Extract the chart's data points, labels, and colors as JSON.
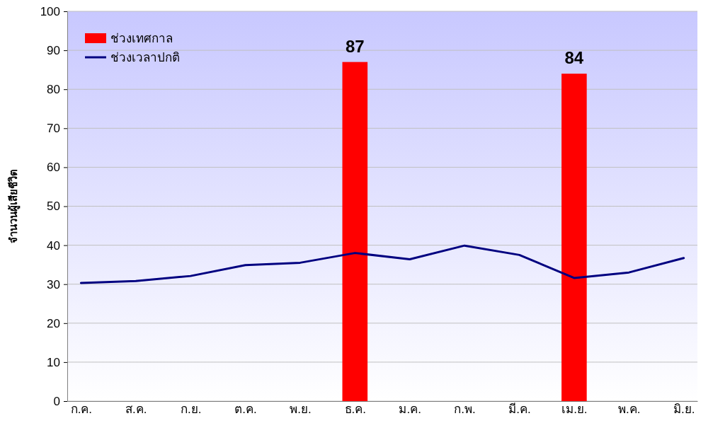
{
  "chart_data": {
    "type": "line",
    "ylabel": "จำนวนผู้เสียชีวิต",
    "categories": [
      "ก.ค.",
      "ส.ค.",
      "ก.ย.",
      "ต.ค.",
      "พ.ย.",
      "ธ.ค.",
      "ม.ค.",
      "ก.พ.",
      "มี.ค.",
      "เม.ย.",
      "พ.ค.",
      "มิ.ย."
    ],
    "ylim": [
      0,
      100
    ],
    "yticks": [
      0,
      10,
      20,
      30,
      40,
      50,
      60,
      70,
      80,
      90,
      100
    ],
    "grid": "y",
    "legend": "top left",
    "series": [
      {
        "name": "ช่วงเทศกาล",
        "type": "bar",
        "color": "#ff0000",
        "values": [
          null,
          null,
          null,
          null,
          null,
          87,
          null,
          null,
          null,
          84,
          null,
          null
        ],
        "value_labels": [
          null,
          null,
          null,
          null,
          null,
          "87",
          null,
          null,
          null,
          "84",
          null,
          null
        ]
      },
      {
        "name": "ช่วงเวลาปกติ",
        "color": "#000080",
        "values": [
          30.3,
          30.8,
          32.1,
          34.9,
          35.5,
          38.0,
          36.4,
          39.9,
          37.5,
          31.6,
          33.0,
          36.7
        ]
      }
    ]
  }
}
